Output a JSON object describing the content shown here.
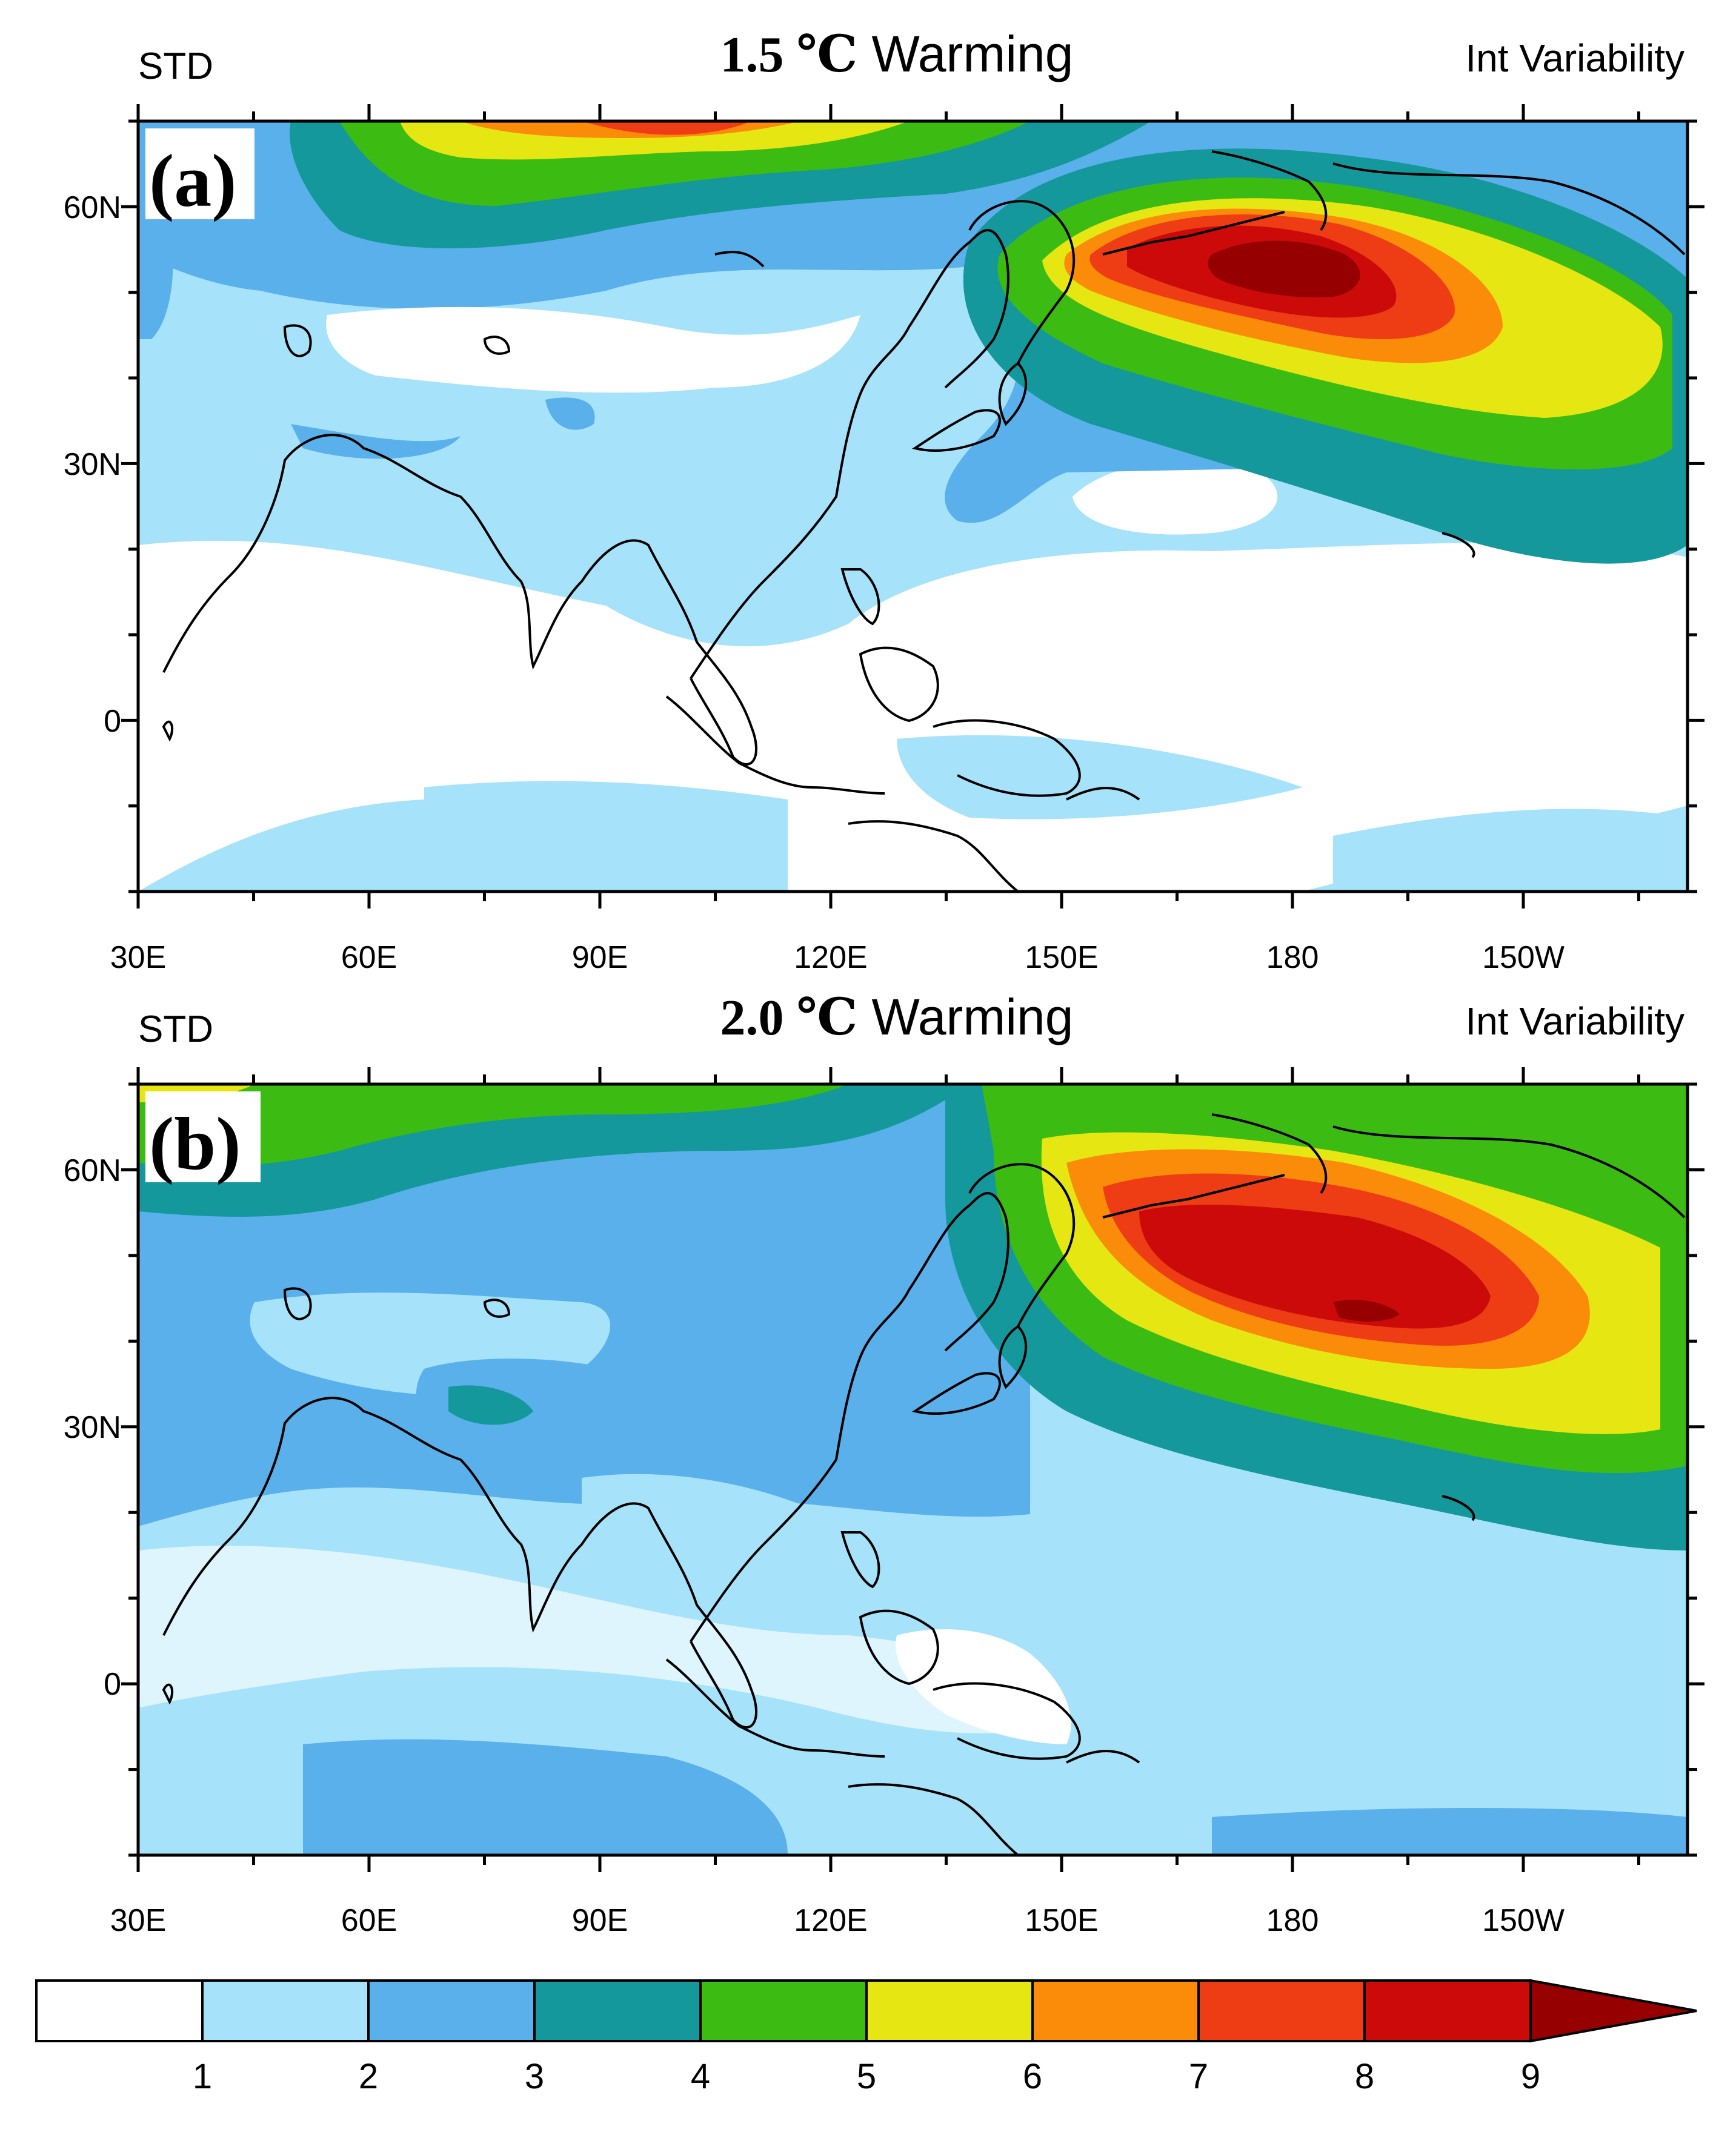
{
  "panels": [
    {
      "id": "a",
      "label": "(a)",
      "left_text": "STD",
      "title_bold": "1.5 ℃",
      "title_rest": " Warming",
      "right_text": "Int Variability",
      "lat_ticks": [
        "60N",
        "30N",
        "0"
      ],
      "lon_ticks": [
        "30E",
        "60E",
        "90E",
        "120E",
        "150E",
        "180",
        "150W"
      ]
    },
    {
      "id": "b",
      "label": "(b)",
      "left_text": "STD",
      "title_bold": "2.0 ℃",
      "title_rest": " Warming",
      "right_text": "Int Variability",
      "lat_ticks": [
        "60N",
        "30N",
        "0"
      ],
      "lon_ticks": [
        "30E",
        "60E",
        "90E",
        "120E",
        "150E",
        "180",
        "150W"
      ]
    }
  ],
  "colorbar": {
    "labels": [
      "1",
      "2",
      "3",
      "4",
      "5",
      "6",
      "7",
      "8",
      "9"
    ],
    "colors": [
      "#ffffff",
      "#a6e3fa",
      "#5ab0ea",
      "#14989c",
      "#3cbc12",
      "#e6e612",
      "#fa8c0a",
      "#ee3c14",
      "#cc0a0a",
      "#960000"
    ]
  }
}
